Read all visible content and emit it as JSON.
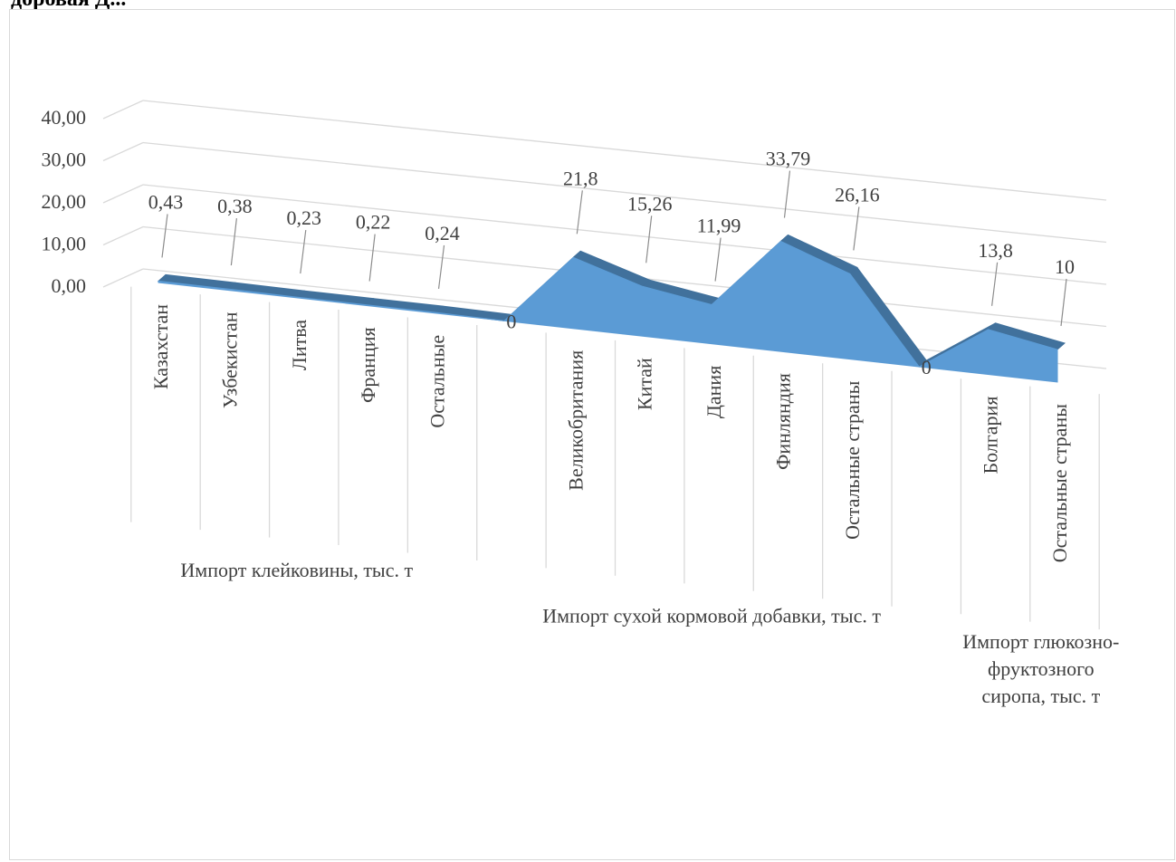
{
  "page": {
    "title_fragment": "доровая Д..."
  },
  "chart_data": {
    "type": "area",
    "three_d": true,
    "title": "",
    "xlabel": "",
    "ylabel": "",
    "ylim": [
      0,
      40
    ],
    "y_ticks": [
      "0,00",
      "10,00",
      "20,00",
      "30,00",
      "40,00"
    ],
    "grid": true,
    "legend": "none",
    "colors": {
      "area": "#5b9bd5",
      "area_dark": "#41719c",
      "grid": "#d9d9d9",
      "text": "#404040"
    },
    "groups": [
      {
        "label": "Импорт клейковины, тыс. т",
        "categories": [
          "Казахстан",
          "Узбекистан",
          "Литва",
          "Франция",
          "Остальные"
        ],
        "values": [
          0.43,
          0.38,
          0.23,
          0.22,
          0.24
        ],
        "value_labels": [
          "0,43",
          "0,38",
          "0,23",
          "0,22",
          "0,24"
        ]
      },
      {
        "label": "",
        "categories": [
          ""
        ],
        "values": [
          0
        ],
        "value_labels": [
          "0"
        ]
      },
      {
        "label": "Импорт сухой кормовой добавки, тыс. т",
        "categories": [
          "Великобритания",
          "Китай",
          "Дания",
          "Финляндия",
          "Остальные страны"
        ],
        "values": [
          21.8,
          15.26,
          11.99,
          33.79,
          26.16
        ],
        "value_labels": [
          "21,8",
          "15,26",
          "11,99",
          "33,79",
          "26,16"
        ]
      },
      {
        "label": "",
        "categories": [
          ""
        ],
        "values": [
          0
        ],
        "value_labels": [
          "0"
        ]
      },
      {
        "label": "Импорт глюкозно-фруктозного сиропа, тыс. т",
        "label_lines": [
          "Импорт глюкозно-",
          "фруктозного",
          "сиропа, тыс. т"
        ],
        "categories": [
          "Болгария",
          "Остальные страны"
        ],
        "values": [
          13.8,
          10
        ],
        "value_labels": [
          "13,8",
          "10"
        ]
      }
    ]
  }
}
